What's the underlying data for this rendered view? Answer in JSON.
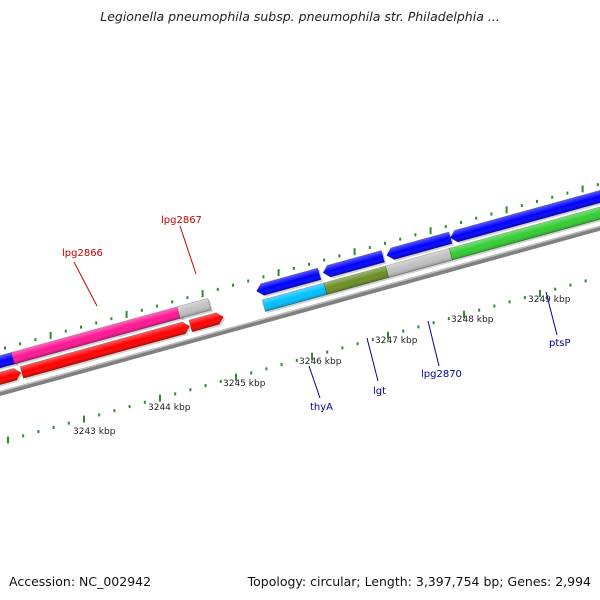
{
  "title": "Legionella pneumophila subsp. pneumophila str. Philadelphia ...",
  "footer": {
    "accession": "Accession: NC_002942",
    "summary": "Topology: circular; Length: 3,397,754 bp; Genes: 2,994"
  },
  "colors": {
    "backbone": "#808080",
    "tick": "#2e8b2e",
    "label_red": "#cc0000",
    "label_blue": "#000099"
  },
  "scale_labels": [
    "3243 kbp",
    "3244 kbp",
    "3245 kbp",
    "3246 kbp",
    "3247 kbp",
    "3248 kbp",
    "3249 kbp"
  ],
  "gene_labels": [
    {
      "name": "lpg2866",
      "color": "#cc0000"
    },
    {
      "name": "lpg2867",
      "color": "#cc0000"
    },
    {
      "name": "thyA",
      "color": "#000099"
    },
    {
      "name": "lgt",
      "color": "#000099"
    },
    {
      "name": "lpg2870",
      "color": "#000099"
    },
    {
      "name": "ptsP",
      "color": "#000099"
    }
  ],
  "features": [
    {
      "name": "blue-left-gene",
      "color": "#0000ff"
    },
    {
      "name": "pink-gene",
      "color": "#ff1493"
    },
    {
      "name": "gray-gene-upper",
      "color": "#c0c0c0"
    },
    {
      "name": "red-gene-left",
      "color": "#ff0000"
    },
    {
      "name": "red-gene-long",
      "color": "#ff0000"
    },
    {
      "name": "red-gene-short",
      "color": "#ff0000"
    },
    {
      "name": "blue-gene-1",
      "color": "#0000ff"
    },
    {
      "name": "blue-gene-2",
      "color": "#0000ff"
    },
    {
      "name": "blue-gene-3",
      "color": "#0000ff"
    },
    {
      "name": "blue-gene-4",
      "color": "#0000ff"
    },
    {
      "name": "cyan-gene",
      "color": "#00bfff"
    },
    {
      "name": "olive-gene",
      "color": "#6b8e23"
    },
    {
      "name": "gray-gene-lower",
      "color": "#c0c0c0"
    },
    {
      "name": "green-gene",
      "color": "#32cd32"
    }
  ]
}
